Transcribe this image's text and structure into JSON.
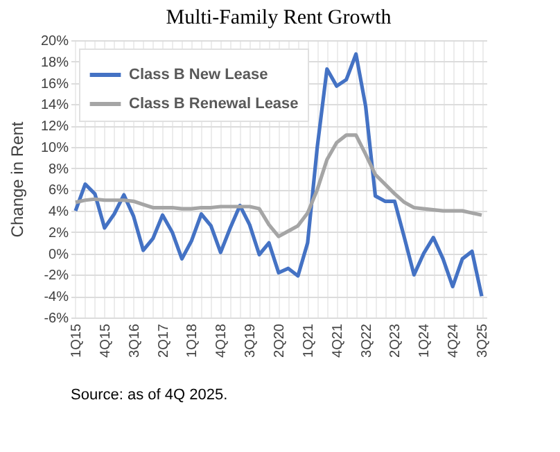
{
  "chart_data": {
    "type": "line",
    "title": "Multi-Family Rent Growth",
    "ylabel": "Change in Rent",
    "categories": [
      "1Q15",
      null,
      null,
      "4Q15",
      null,
      null,
      "3Q16",
      null,
      null,
      "2Q17",
      null,
      null,
      "1Q18",
      null,
      null,
      "4Q18",
      null,
      null,
      "3Q19",
      null,
      null,
      "2Q20",
      null,
      null,
      "1Q21",
      null,
      null,
      "4Q21",
      null,
      null,
      "3Q22",
      null,
      null,
      "2Q23",
      null,
      null,
      "1Q24",
      null,
      null,
      "4Q24",
      null,
      null,
      "3Q25"
    ],
    "series": [
      {
        "name": "Class B New Lease",
        "color": "#4472c4",
        "values": [
          4.0,
          6.5,
          5.6,
          2.4,
          3.7,
          5.5,
          3.5,
          0.3,
          1.4,
          3.6,
          2.0,
          -0.5,
          1.2,
          3.7,
          2.6,
          0.1,
          2.4,
          4.5,
          2.7,
          -0.1,
          1.0,
          -1.8,
          -1.4,
          -2.1,
          1.0,
          10.0,
          17.3,
          15.7,
          16.3,
          18.7,
          13.8,
          5.4,
          4.9,
          4.9,
          1.5,
          -2.0,
          0.0,
          1.5,
          -0.5,
          -3.1,
          -0.5,
          0.2,
          -4.0
        ]
      },
      {
        "name": "Class B Renewal Lease",
        "color": "#a5a5a5",
        "values": [
          4.8,
          5.0,
          5.1,
          5.0,
          5.0,
          5.0,
          4.9,
          4.6,
          4.3,
          4.3,
          4.3,
          4.2,
          4.2,
          4.3,
          4.3,
          4.4,
          4.4,
          4.4,
          4.4,
          4.2,
          2.7,
          1.6,
          2.1,
          2.6,
          3.8,
          6.0,
          8.8,
          10.4,
          11.1,
          11.1,
          9.3,
          7.4,
          6.5,
          5.6,
          4.8,
          4.3,
          4.2,
          4.1,
          4.0,
          4.0,
          4.0,
          3.8,
          3.6
        ]
      }
    ],
    "ylim": [
      -6,
      20
    ],
    "yticks": [
      {
        "value": -6,
        "label": "-6%"
      },
      {
        "value": -4,
        "label": "-4%"
      },
      {
        "value": -2,
        "label": "-2%"
      },
      {
        "value": 0,
        "label": "0%"
      },
      {
        "value": 2,
        "label": "2%"
      },
      {
        "value": 4,
        "label": "4%"
      },
      {
        "value": 6,
        "label": "6%"
      },
      {
        "value": 8,
        "label": "8%"
      },
      {
        "value": 10,
        "label": "10%"
      },
      {
        "value": 12,
        "label": "12%"
      },
      {
        "value": 14,
        "label": "14%"
      },
      {
        "value": 16,
        "label": "16%"
      },
      {
        "value": 18,
        "label": "18%"
      },
      {
        "value": 20,
        "label": "20%"
      }
    ],
    "grid": true,
    "legend": "top left",
    "marker": "none",
    "line_style": "solid",
    "annotations": [
      "Source: as of 4Q 2025."
    ]
  }
}
